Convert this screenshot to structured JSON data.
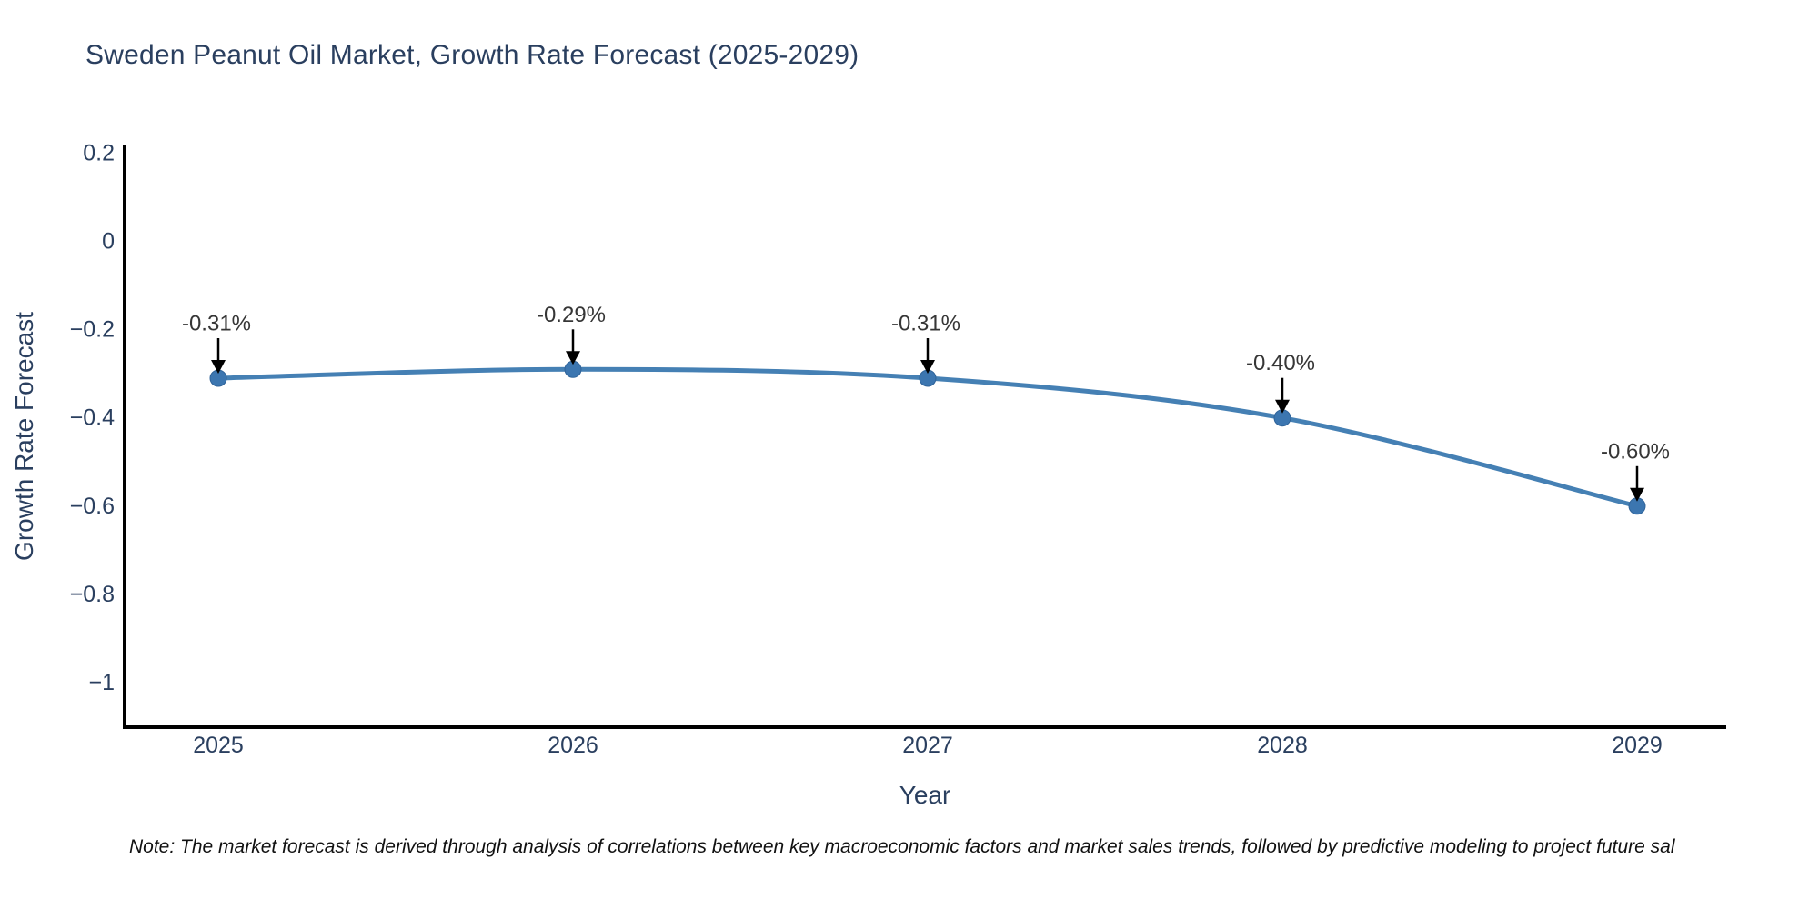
{
  "title": "Sweden Peanut Oil Market, Growth Rate Forecast (2025-2029)",
  "note": "Note: The market forecast is derived through analysis of correlations between key macroeconomic factors and market sales trends, followed by predictive modeling to project future sal",
  "chart_data": {
    "type": "line",
    "title": "Sweden Peanut Oil Market, Growth Rate Forecast (2025-2029)",
    "xlabel": "Year",
    "ylabel": "Growth Rate Forecast",
    "x": [
      2025,
      2026,
      2027,
      2028,
      2029
    ],
    "y": [
      -0.31,
      -0.29,
      -0.31,
      -0.4,
      -0.6
    ],
    "point_labels": [
      "-0.31%",
      "-0.29%",
      "-0.31%",
      "-0.40%",
      "-0.60%"
    ],
    "xtick_labels": [
      "2025",
      "2026",
      "2027",
      "2028",
      "2029"
    ],
    "yticks": [
      0.2,
      0,
      -0.2,
      -0.4,
      -0.6,
      -0.8,
      -1
    ],
    "ytick_labels": [
      "0.2",
      "0",
      "−0.2",
      "−0.4",
      "−0.6",
      "−0.8",
      "−1"
    ],
    "ylim": [
      -1.1,
      0.22
    ],
    "grid": false,
    "legend": "none",
    "line_color": "#4580b4",
    "marker_color": "#3c76b0",
    "marker_edge_color": "#2f6399",
    "axis_color": "#000000",
    "tick_color": "#2a3f5f",
    "annotation_text_color": "#363636",
    "annotation_arrow_color": "#000000"
  }
}
